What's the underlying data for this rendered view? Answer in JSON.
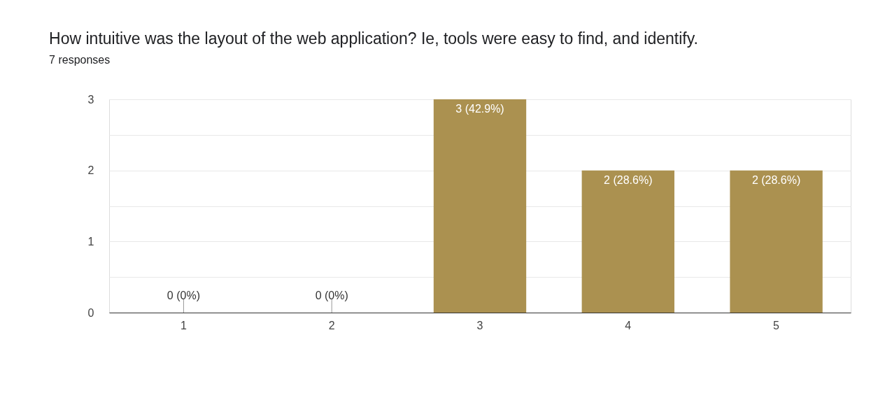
{
  "chart_data": {
    "type": "bar",
    "title": "How intuitive was the layout of the web application? Ie, tools were easy to find, and identify.",
    "subtitle": "7 responses",
    "categories": [
      "1",
      "2",
      "3",
      "4",
      "5"
    ],
    "values": [
      0,
      0,
      3,
      2,
      2
    ],
    "value_labels": [
      "0 (0%)",
      "0 (0%)",
      "3 (42.9%)",
      "2 (28.6%)",
      "2 (28.6%)"
    ],
    "color": "#ab9150",
    "ylim": [
      0,
      3
    ],
    "yticks": [
      0,
      {
        "value": 0.5,
        "label": null
      },
      1,
      {
        "value": 1.5,
        "label": null
      },
      2,
      {
        "value": 2.5,
        "label": null
      },
      3
    ],
    "grid": "y"
  }
}
